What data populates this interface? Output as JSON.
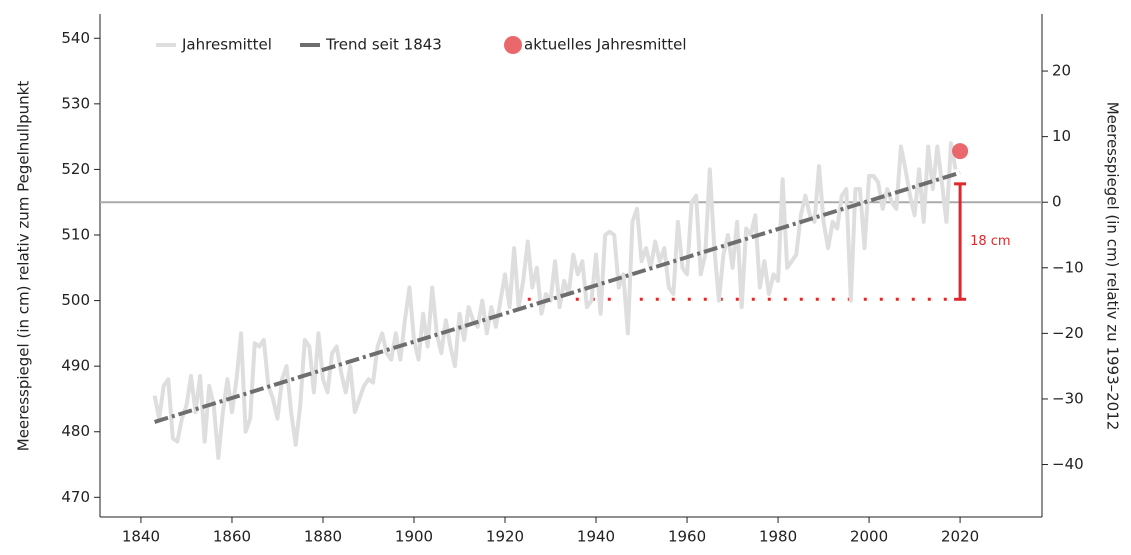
{
  "chart_data": {
    "type": "line",
    "y_label": "Meeresspiegel (in cm) relativ zum Pegelnullpunkt",
    "y2_label": "Meeresspiegel (in cm) relativ zu 1993–2012",
    "xlim": [
      1831,
      2038
    ],
    "xticks": [
      1840,
      1860,
      1880,
      1900,
      1920,
      1940,
      1960,
      1980,
      2000,
      2020
    ],
    "ylim": [
      467,
      543.7
    ],
    "yticks": [
      470,
      480,
      490,
      500,
      510,
      520,
      530,
      540
    ],
    "y2lim": [
      -48,
      28.7
    ],
    "y2ticks": [
      {
        "value": -40,
        "label": "−40"
      },
      {
        "value": -30,
        "label": "−30"
      },
      {
        "value": -20,
        "label": "−20"
      },
      {
        "value": -10,
        "label": "−10"
      },
      0,
      10,
      20
    ],
    "reference_line": 515,
    "series": [
      {
        "name": "Jahresmittel",
        "color": "#dedede",
        "style": "line",
        "x": [
          1843,
          1844,
          1845,
          1846,
          1847,
          1848,
          1849,
          1850,
          1851,
          1852,
          1853,
          1854,
          1855,
          1856,
          1857,
          1858,
          1859,
          1860,
          1861,
          1862,
          1863,
          1864,
          1865,
          1866,
          1867,
          1868,
          1869,
          1870,
          1871,
          1872,
          1873,
          1874,
          1875,
          1876,
          1877,
          1878,
          1879,
          1880,
          1881,
          1882,
          1883,
          1884,
          1885,
          1886,
          1887,
          1888,
          1889,
          1890,
          1891,
          1892,
          1893,
          1894,
          1895,
          1896,
          1897,
          1898,
          1899,
          1900,
          1901,
          1902,
          1903,
          1904,
          1905,
          1906,
          1907,
          1908,
          1909,
          1910,
          1911,
          1912,
          1913,
          1914,
          1915,
          1916,
          1917,
          1918,
          1919,
          1920,
          1921,
          1922,
          1923,
          1924,
          1925,
          1926,
          1927,
          1928,
          1929,
          1930,
          1931,
          1932,
          1933,
          1934,
          1935,
          1936,
          1937,
          1938,
          1939,
          1940,
          1941,
          1942,
          1943,
          1944,
          1945,
          1946,
          1947,
          1948,
          1949,
          1950,
          1951,
          1952,
          1953,
          1954,
          1955,
          1956,
          1957,
          1958,
          1959,
          1960,
          1961,
          1962,
          1963,
          1964,
          1965,
          1966,
          1967,
          1968,
          1969,
          1970,
          1971,
          1972,
          1973,
          1974,
          1975,
          1976,
          1977,
          1978,
          1979,
          1980,
          1981,
          1982,
          1983,
          1984,
          1985,
          1986,
          1987,
          1988,
          1989,
          1990,
          1991,
          1992,
          1993,
          1994,
          1995,
          1996,
          1997,
          1998,
          1999,
          2000,
          2001,
          2002,
          2003,
          2004,
          2005,
          2006,
          2007,
          2008,
          2009,
          2010,
          2011,
          2012,
          2013,
          2014,
          2015,
          2016,
          2017,
          2018,
          2019
        ],
        "values": [
          485.5,
          482,
          487,
          488,
          479,
          478.5,
          482,
          484,
          488.5,
          483,
          488.5,
          478.5,
          487,
          484,
          476,
          483,
          488,
          483,
          488,
          495,
          480,
          482,
          493.5,
          493,
          494,
          487,
          485,
          482,
          488,
          490,
          483,
          478,
          484,
          494,
          493,
          486,
          495,
          488,
          486,
          492,
          493,
          489,
          486,
          490,
          483,
          485,
          487,
          488,
          487.5,
          493,
          495,
          492,
          491,
          495,
          491,
          497,
          502,
          494,
          491,
          498,
          493,
          502,
          495,
          492,
          497,
          493,
          490,
          498,
          494,
          499,
          497,
          496,
          500,
          495,
          499,
          496,
          500,
          504,
          499,
          508,
          499,
          503,
          509,
          502,
          505,
          498,
          501,
          500,
          506,
          499,
          503,
          501,
          507,
          504,
          506,
          499,
          500,
          507,
          498,
          510,
          510.5,
          510,
          502,
          504,
          495,
          512,
          514,
          506,
          508,
          505,
          509,
          506,
          508,
          502,
          501,
          512,
          505,
          504,
          515,
          516,
          504,
          507,
          520,
          508,
          500,
          507,
          510,
          505,
          512,
          499,
          511,
          510,
          513,
          502,
          506,
          501,
          504,
          503,
          518.5,
          505,
          506,
          507,
          513,
          516,
          513,
          512,
          520.5,
          512,
          508,
          512,
          511,
          516,
          517,
          500,
          517,
          517,
          508,
          519,
          519,
          518,
          514,
          517,
          515,
          514,
          523.5,
          520,
          516,
          513,
          520,
          512,
          523.5,
          517,
          523.5,
          518,
          512,
          524,
          520
        ]
      },
      {
        "name": "Trend seit 1843",
        "color": "#6e6e6e",
        "style": "trend",
        "x": [
          1843,
          2020
        ],
        "values": [
          481.5,
          519.5
        ]
      },
      {
        "name": "aktuelles Jahresmittel",
        "color": "#e8585c",
        "style": "point",
        "x": [
          2020
        ],
        "values": [
          522.8
        ]
      }
    ],
    "annotation": {
      "text": "18 cm",
      "color": "#e0282c",
      "x": 2020,
      "x_start": 1925,
      "low": 500.2,
      "high": 517.8
    }
  }
}
